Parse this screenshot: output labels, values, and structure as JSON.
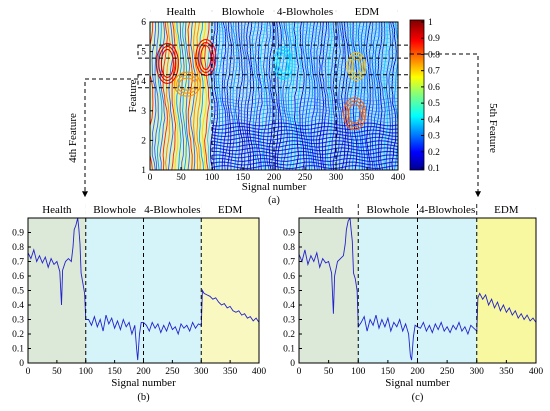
{
  "chart_data": [
    {
      "id": "a",
      "type": "heatmap",
      "subtype": "contour",
      "caption": "(a)",
      "xlabel": "Signal number",
      "ylabel": "Feature",
      "xlim": [
        0,
        400
      ],
      "ylim": [
        1,
        6
      ],
      "x_ticks": [
        0,
        50,
        100,
        150,
        200,
        250,
        300,
        350,
        400
      ],
      "y_ticks": [
        1,
        2,
        3,
        4,
        5,
        6
      ],
      "colorbar": {
        "min": 0.1,
        "max": 1,
        "ticks": [
          1,
          0.9,
          0.8,
          0.7,
          0.6,
          0.5,
          0.4,
          0.3,
          0.2,
          0.1
        ],
        "colormap": "jet"
      },
      "regions": [
        {
          "label": "Health",
          "from": 0,
          "to": 100
        },
        {
          "label": "Blowhole",
          "from": 100,
          "to": 200
        },
        {
          "label": "4-Blowholes",
          "from": 200,
          "to": 300
        },
        {
          "label": "EDM",
          "from": 300,
          "to": 400
        }
      ],
      "highlighted_features": [
        4,
        5
      ]
    },
    {
      "id": "b",
      "type": "line",
      "caption": "(b)",
      "xlabel": "Signal number",
      "ylabel": "",
      "xlim": [
        0,
        400
      ],
      "ylim": [
        0,
        1
      ],
      "x_ticks": [
        0,
        50,
        100,
        150,
        200,
        250,
        300,
        350,
        400
      ],
      "y_ticks": [
        0,
        0.1,
        0.2,
        0.3,
        0.4,
        0.5,
        0.6,
        0.7,
        0.8,
        0.9
      ],
      "regions": [
        {
          "label": "Health",
          "from": 0,
          "to": 100,
          "color": "#dce8d8"
        },
        {
          "label": "Blowhole",
          "from": 100,
          "to": 200,
          "color": "#d4f4fa"
        },
        {
          "label": "4-Blowholes",
          "from": 200,
          "to": 300,
          "color": "#d4f4fa"
        },
        {
          "label": "EDM",
          "from": 300,
          "to": 400,
          "color": "#f8f8c0"
        }
      ],
      "series": [
        {
          "color": "#2222cc",
          "points": [
            [
              0,
              0.76
            ],
            [
              5,
              0.72
            ],
            [
              10,
              0.78
            ],
            [
              15,
              0.7
            ],
            [
              20,
              0.74
            ],
            [
              25,
              0.69
            ],
            [
              30,
              0.73
            ],
            [
              35,
              0.66
            ],
            [
              40,
              0.72
            ],
            [
              45,
              0.68
            ],
            [
              50,
              0.7
            ],
            [
              55,
              0.63
            ],
            [
              58,
              0.4
            ],
            [
              60,
              0.64
            ],
            [
              65,
              0.7
            ],
            [
              70,
              0.72
            ],
            [
              75,
              0.7
            ],
            [
              78,
              0.8
            ],
            [
              80,
              0.92
            ],
            [
              83,
              0.95
            ],
            [
              86,
              1.0
            ],
            [
              88,
              0.93
            ],
            [
              90,
              0.82
            ],
            [
              92,
              0.62
            ],
            [
              95,
              0.55
            ],
            [
              98,
              0.48
            ],
            [
              100,
              0.3
            ],
            [
              105,
              0.3
            ],
            [
              110,
              0.26
            ],
            [
              115,
              0.32
            ],
            [
              120,
              0.25
            ],
            [
              125,
              0.3
            ],
            [
              130,
              0.22
            ],
            [
              135,
              0.33
            ],
            [
              140,
              0.27
            ],
            [
              145,
              0.31
            ],
            [
              150,
              0.24
            ],
            [
              155,
              0.29
            ],
            [
              160,
              0.23
            ],
            [
              165,
              0.3
            ],
            [
              170,
              0.25
            ],
            [
              175,
              0.28
            ],
            [
              180,
              0.2
            ],
            [
              185,
              0.26
            ],
            [
              188,
              0.1
            ],
            [
              190,
              0.02
            ],
            [
              193,
              0.2
            ],
            [
              196,
              0.28
            ],
            [
              200,
              0.28
            ],
            [
              205,
              0.26
            ],
            [
              210,
              0.22
            ],
            [
              215,
              0.28
            ],
            [
              220,
              0.24
            ],
            [
              225,
              0.27
            ],
            [
              230,
              0.21
            ],
            [
              235,
              0.26
            ],
            [
              240,
              0.22
            ],
            [
              245,
              0.28
            ],
            [
              250,
              0.23
            ],
            [
              255,
              0.25
            ],
            [
              260,
              0.2
            ],
            [
              265,
              0.27
            ],
            [
              270,
              0.24
            ],
            [
              275,
              0.26
            ],
            [
              280,
              0.22
            ],
            [
              285,
              0.28
            ],
            [
              290,
              0.24
            ],
            [
              295,
              0.27
            ],
            [
              300,
              0.26
            ],
            [
              302,
              0.5
            ],
            [
              305,
              0.48
            ],
            [
              310,
              0.47
            ],
            [
              315,
              0.46
            ],
            [
              320,
              0.44
            ],
            [
              325,
              0.45
            ],
            [
              330,
              0.42
            ],
            [
              335,
              0.4
            ],
            [
              340,
              0.41
            ],
            [
              345,
              0.38
            ],
            [
              350,
              0.39
            ],
            [
              355,
              0.36
            ],
            [
              360,
              0.35
            ],
            [
              365,
              0.36
            ],
            [
              370,
              0.33
            ],
            [
              375,
              0.34
            ],
            [
              380,
              0.31
            ],
            [
              385,
              0.32
            ],
            [
              390,
              0.29
            ],
            [
              395,
              0.31
            ],
            [
              400,
              0.28
            ]
          ]
        }
      ]
    },
    {
      "id": "c",
      "type": "line",
      "caption": "(c)",
      "xlabel": "Signal number",
      "ylabel": "",
      "xlim": [
        0,
        400
      ],
      "ylim": [
        0,
        1
      ],
      "x_ticks": [
        0,
        50,
        100,
        150,
        200,
        250,
        300,
        350,
        400
      ],
      "y_ticks": [
        0,
        0.1,
        0.2,
        0.3,
        0.4,
        0.5,
        0.6,
        0.7,
        0.8,
        0.9
      ],
      "regions": [
        {
          "label": "Health",
          "from": 0,
          "to": 100,
          "color": "#dce8d8"
        },
        {
          "label": "Blowhole",
          "from": 100,
          "to": 200,
          "color": "#d4f4fa"
        },
        {
          "label": "4-Blowholes",
          "from": 200,
          "to": 300,
          "color": "#d4f4fa"
        },
        {
          "label": "EDM",
          "from": 300,
          "to": 400,
          "color": "#f8f8a0"
        }
      ],
      "series": [
        {
          "color": "#2222cc",
          "points": [
            [
              0,
              0.75
            ],
            [
              5,
              0.7
            ],
            [
              10,
              0.78
            ],
            [
              15,
              0.68
            ],
            [
              20,
              0.74
            ],
            [
              25,
              0.7
            ],
            [
              30,
              0.76
            ],
            [
              35,
              0.66
            ],
            [
              40,
              0.72
            ],
            [
              45,
              0.69
            ],
            [
              50,
              0.7
            ],
            [
              55,
              0.62
            ],
            [
              58,
              0.34
            ],
            [
              60,
              0.6
            ],
            [
              65,
              0.7
            ],
            [
              70,
              0.72
            ],
            [
              75,
              0.74
            ],
            [
              78,
              0.82
            ],
            [
              80,
              0.92
            ],
            [
              83,
              0.98
            ],
            [
              86,
              1.0
            ],
            [
              88,
              0.92
            ],
            [
              90,
              0.84
            ],
            [
              92,
              0.62
            ],
            [
              95,
              0.58
            ],
            [
              98,
              0.5
            ],
            [
              100,
              0.25
            ],
            [
              105,
              0.28
            ],
            [
              110,
              0.32
            ],
            [
              115,
              0.22
            ],
            [
              120,
              0.3
            ],
            [
              125,
              0.26
            ],
            [
              130,
              0.33
            ],
            [
              135,
              0.24
            ],
            [
              140,
              0.3
            ],
            [
              145,
              0.25
            ],
            [
              150,
              0.31
            ],
            [
              155,
              0.22
            ],
            [
              160,
              0.28
            ],
            [
              165,
              0.25
            ],
            [
              170,
              0.3
            ],
            [
              175,
              0.22
            ],
            [
              180,
              0.27
            ],
            [
              185,
              0.2
            ],
            [
              188,
              0.05
            ],
            [
              190,
              0.02
            ],
            [
              193,
              0.18
            ],
            [
              196,
              0.26
            ],
            [
              200,
              0.25
            ],
            [
              205,
              0.24
            ],
            [
              210,
              0.28
            ],
            [
              215,
              0.22
            ],
            [
              220,
              0.26
            ],
            [
              225,
              0.21
            ],
            [
              230,
              0.27
            ],
            [
              235,
              0.23
            ],
            [
              240,
              0.28
            ],
            [
              245,
              0.22
            ],
            [
              250,
              0.25
            ],
            [
              255,
              0.21
            ],
            [
              260,
              0.26
            ],
            [
              265,
              0.23
            ],
            [
              270,
              0.28
            ],
            [
              275,
              0.22
            ],
            [
              280,
              0.25
            ],
            [
              285,
              0.2
            ],
            [
              290,
              0.26
            ],
            [
              295,
              0.24
            ],
            [
              300,
              0.22
            ],
            [
              302,
              0.45
            ],
            [
              305,
              0.48
            ],
            [
              310,
              0.44
            ],
            [
              315,
              0.47
            ],
            [
              320,
              0.4
            ],
            [
              325,
              0.44
            ],
            [
              330,
              0.38
            ],
            [
              335,
              0.42
            ],
            [
              340,
              0.36
            ],
            [
              345,
              0.4
            ],
            [
              350,
              0.35
            ],
            [
              355,
              0.38
            ],
            [
              360,
              0.33
            ],
            [
              365,
              0.36
            ],
            [
              370,
              0.31
            ],
            [
              375,
              0.34
            ],
            [
              380,
              0.3
            ],
            [
              385,
              0.33
            ],
            [
              390,
              0.29
            ],
            [
              395,
              0.31
            ],
            [
              400,
              0.28
            ]
          ]
        }
      ]
    }
  ],
  "annotations": {
    "left_link": "4th Feature",
    "right_link": "5th Feature"
  }
}
